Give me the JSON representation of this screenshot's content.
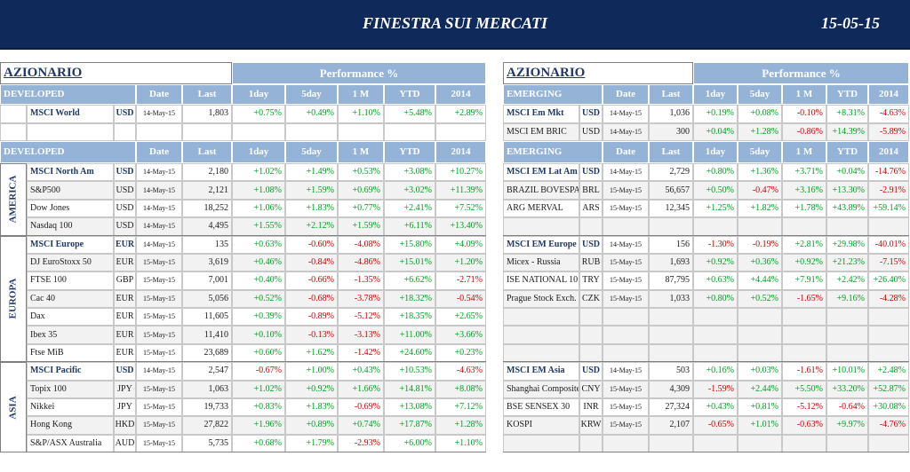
{
  "header": {
    "title": "FINESTRA SUI MERCATI",
    "date": "15-05-15"
  },
  "panels": [
    {
      "section": "AZIONARIO",
      "performance": "Performance  %",
      "header": [
        "DEVELOPED",
        "Date",
        "Last",
        "1day",
        "5day",
        "1 M",
        "YTD",
        "2014"
      ],
      "top_rows": [
        [
          "MSCI World",
          "USD",
          "14-May-15",
          "1,803",
          "+0.75%",
          "+0.49%",
          "+1.10%",
          "+5.48%",
          "+2.89%"
        ]
      ],
      "header2": [
        "DEVELOPED",
        "Date",
        "Last",
        "1day",
        "5day",
        "1 M",
        "YTD",
        "2014"
      ],
      "groups": [
        {
          "region": "AMERICA",
          "rows": [
            [
              "MSCI North Am",
              "USD",
              "14-May-15",
              "2,180",
              "+1.02%",
              "+1.49%",
              "+0.53%",
              "+3.08%",
              "+10.27%"
            ],
            [
              "S&P500",
              "USD",
              "14-May-15",
              "2,121",
              "+1.08%",
              "+1.59%",
              "+0.69%",
              "+3.02%",
              "+11.39%"
            ],
            [
              "Dow Jones",
              "USD",
              "14-May-15",
              "18,252",
              "+1.06%",
              "+1.83%",
              "+0.77%",
              "+2.41%",
              "+7.52%"
            ],
            [
              "Nasdaq 100",
              "USD",
              "14-May-15",
              "4,495",
              "+1.55%",
              "+2.12%",
              "+1.59%",
              "+6.11%",
              "+13.40%"
            ]
          ]
        },
        {
          "region": "EUROPA",
          "rows": [
            [
              "MSCI Europe",
              "EUR",
              "14-May-15",
              "135",
              "+0.63%",
              "-0.60%",
              "-4.08%",
              "+15.80%",
              "+4.09%"
            ],
            [
              "DJ EuroStoxx 50",
              "EUR",
              "15-May-15",
              "3,619",
              "+0.46%",
              "-0.84%",
              "-4.86%",
              "+15.01%",
              "+1.20%"
            ],
            [
              "FTSE 100",
              "GBP",
              "15-May-15",
              "7,001",
              "+0.40%",
              "-0.66%",
              "-1.35%",
              "+6.62%",
              "-2.71%"
            ],
            [
              "Cac 40",
              "EUR",
              "15-May-15",
              "5,056",
              "+0.52%",
              "-0.68%",
              "-3.78%",
              "+18.32%",
              "-0.54%"
            ],
            [
              "Dax",
              "EUR",
              "15-May-15",
              "11,605",
              "+0.39%",
              "-0.89%",
              "-5.12%",
              "+18.35%",
              "+2.65%"
            ],
            [
              "Ibex 35",
              "EUR",
              "15-May-15",
              "11,410",
              "+0.10%",
              "-0.13%",
              "-3.13%",
              "+11.00%",
              "+3.66%"
            ],
            [
              "Ftse MiB",
              "EUR",
              "15-May-15",
              "23,689",
              "+0.60%",
              "+1.62%",
              "-1.42%",
              "+24.60%",
              "+0.23%"
            ]
          ]
        },
        {
          "region": "ASIA",
          "rows": [
            [
              "MSCI Pacific",
              "USD",
              "14-May-15",
              "2,547",
              "-0.67%",
              "+1.00%",
              "+0.43%",
              "+10.53%",
              "-4.63%"
            ],
            [
              "Topix 100",
              "JPY",
              "15-May-15",
              "1,063",
              "+1.02%",
              "+0.92%",
              "+1.66%",
              "+14.81%",
              "+8.08%"
            ],
            [
              "Nikkei",
              "JPY",
              "15-May-15",
              "19,733",
              "+0.83%",
              "+1.83%",
              "-0.69%",
              "+13.08%",
              "+7.12%"
            ],
            [
              "Hong Kong",
              "HKD",
              "15-May-15",
              "27,822",
              "+1.96%",
              "+0.89%",
              "+0.74%",
              "+17.87%",
              "+1.28%"
            ],
            [
              "S&P/ASX Australia",
              "AUD",
              "15-May-15",
              "5,735",
              "+0.68%",
              "+1.79%",
              "-2.93%",
              "+6.00%",
              "+1.10%"
            ]
          ]
        }
      ]
    },
    {
      "section": "AZIONARIO",
      "performance": "Performance  %",
      "header": [
        "EMERGING",
        "Date",
        "Last",
        "1day",
        "5day",
        "1 M",
        "YTD",
        "2014"
      ],
      "top_rows": [
        [
          "MSCI Em Mkt",
          "USD",
          "14-May-15",
          "1,036",
          "+0.19%",
          "+0.08%",
          "-0.10%",
          "+8.31%",
          "-4.63%"
        ],
        [
          "MSCI EM BRIC",
          "USD",
          "14-May-15",
          "300",
          "+0.04%",
          "+1.28%",
          "-0.86%",
          "+14.39%",
          "-5.89%"
        ]
      ],
      "header2": [
        "EMERGING",
        "Date",
        "Last",
        "1day",
        "5day",
        "1 M",
        "YTD",
        "2014"
      ],
      "groups": [
        {
          "rows": [
            [
              "MSCI EM Lat Am",
              "USD",
              "14-May-15",
              "2,729",
              "+0.80%",
              "+1.36%",
              "+3.71%",
              "+0.04%",
              "-14.76%"
            ],
            [
              "BRAZIL BOVESPA",
              "BRL",
              "15-May-15",
              "56,657",
              "+0.50%",
              "-0.47%",
              "+3.16%",
              "+13.30%",
              "-2.91%"
            ],
            [
              "ARG MERVAL",
              "ARS",
              "15-May-15",
              "12,345",
              "+1.25%",
              "+1.82%",
              "+1.78%",
              "+43.89%",
              "+59.14%"
            ]
          ]
        },
        {
          "rows": [
            [
              "MSCI EM Europe",
              "USD",
              "14-May-15",
              "156",
              "-1.30%",
              "-0.19%",
              "+2.81%",
              "+29.98%",
              "-40.01%"
            ],
            [
              "Micex - Russia",
              "RUB",
              "15-May-15",
              "1,693",
              "+0.92%",
              "+0.36%",
              "+0.92%",
              "+21.23%",
              "-7.15%"
            ],
            [
              "ISE NATIONAL 10",
              "TRY",
              "15-May-15",
              "87,795",
              "+0.63%",
              "+4.44%",
              "+7.91%",
              "+2.42%",
              "+26.40%"
            ],
            [
              "Prague Stock Exch.",
              "CZK",
              "15-May-15",
              "1,033",
              "+0.80%",
              "+0.52%",
              "-1.65%",
              "+9.16%",
              "-4.28%"
            ]
          ]
        },
        {
          "rows": [
            [
              "MSCI EM Asia",
              "USD",
              "14-May-15",
              "503",
              "+0.16%",
              "+0.03%",
              "-1.61%",
              "+10.01%",
              "+2.48%"
            ],
            [
              "Shanghai Composite",
              "CNY",
              "15-May-15",
              "4,309",
              "-1.59%",
              "+2.44%",
              "+5.50%",
              "+33.20%",
              "+52.87%"
            ],
            [
              "BSE SENSEX 30",
              "INR",
              "15-May-15",
              "27,324",
              "+0.43%",
              "+0.81%",
              "-5.12%",
              "-0.64%",
              "+30.08%"
            ],
            [
              "KOSPI",
              "KRW",
              "15-May-15",
              "2,107",
              "-0.65%",
              "+1.01%",
              "-0.63%",
              "+9.97%",
              "-4.76%"
            ]
          ]
        }
      ]
    }
  ]
}
